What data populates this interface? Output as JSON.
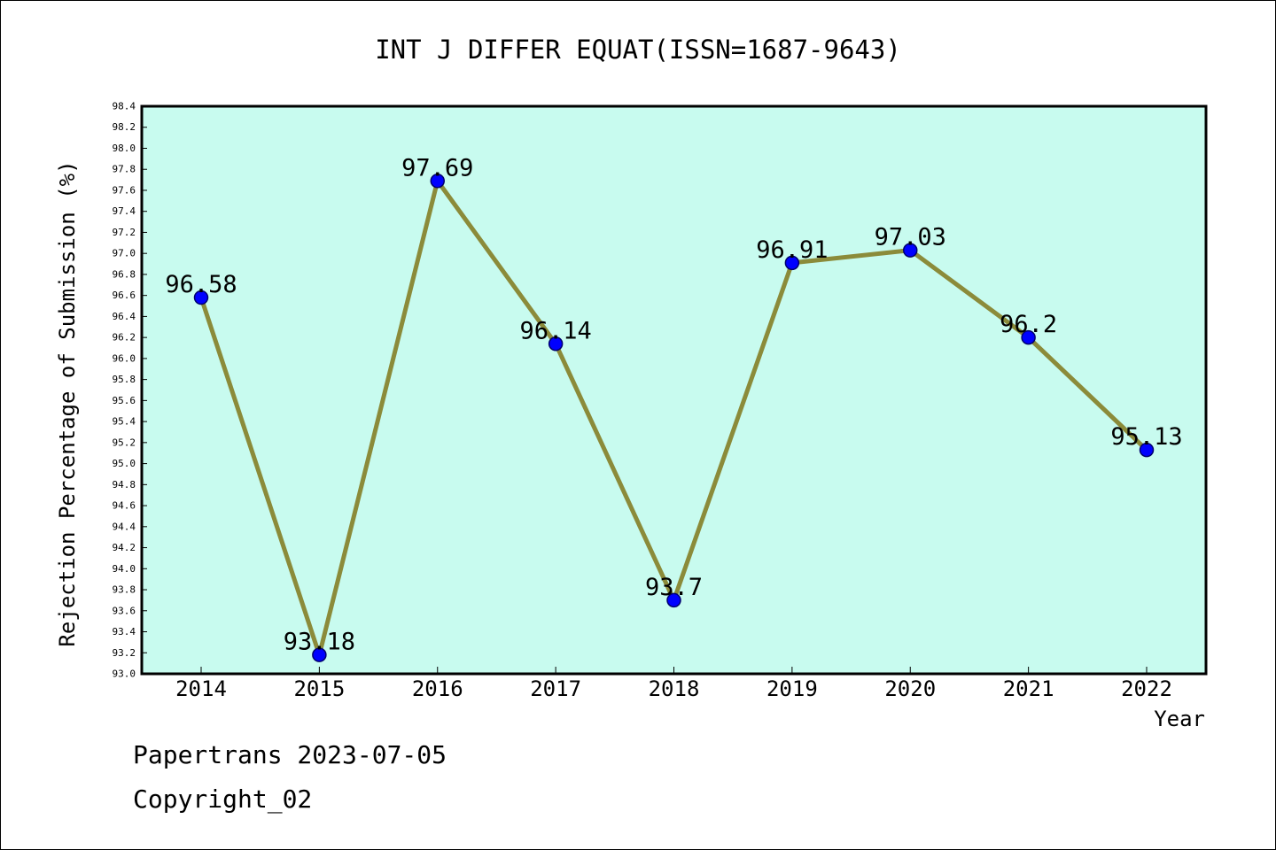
{
  "chart_data": {
    "type": "line",
    "title": "INT J DIFFER EQUAT(ISSN=1687-9643)",
    "xlabel": "Year",
    "ylabel": "Rejection Percentage of Submission (%)",
    "categories": [
      "2014",
      "2015",
      "2016",
      "2017",
      "2018",
      "2019",
      "2020",
      "2021",
      "2022"
    ],
    "values": [
      96.58,
      93.18,
      97.69,
      96.14,
      93.7,
      96.91,
      97.03,
      96.2,
      95.13
    ],
    "data_labels": [
      "96.58",
      "93.18",
      "97.69",
      "96.14",
      "93.7",
      "96.91",
      "97.03",
      "96.2",
      "95.13"
    ],
    "ylim": [
      93.0,
      98.4
    ],
    "ytick_step": 0.2,
    "grid": false,
    "colors": {
      "plot_background": "#c8fbef",
      "line": "#8b8b3a",
      "marker": "#0000ff",
      "marker_edge": "#00006e"
    }
  },
  "footer": {
    "line1": "Papertrans 2023-07-05",
    "line2": "Copyright_02"
  }
}
